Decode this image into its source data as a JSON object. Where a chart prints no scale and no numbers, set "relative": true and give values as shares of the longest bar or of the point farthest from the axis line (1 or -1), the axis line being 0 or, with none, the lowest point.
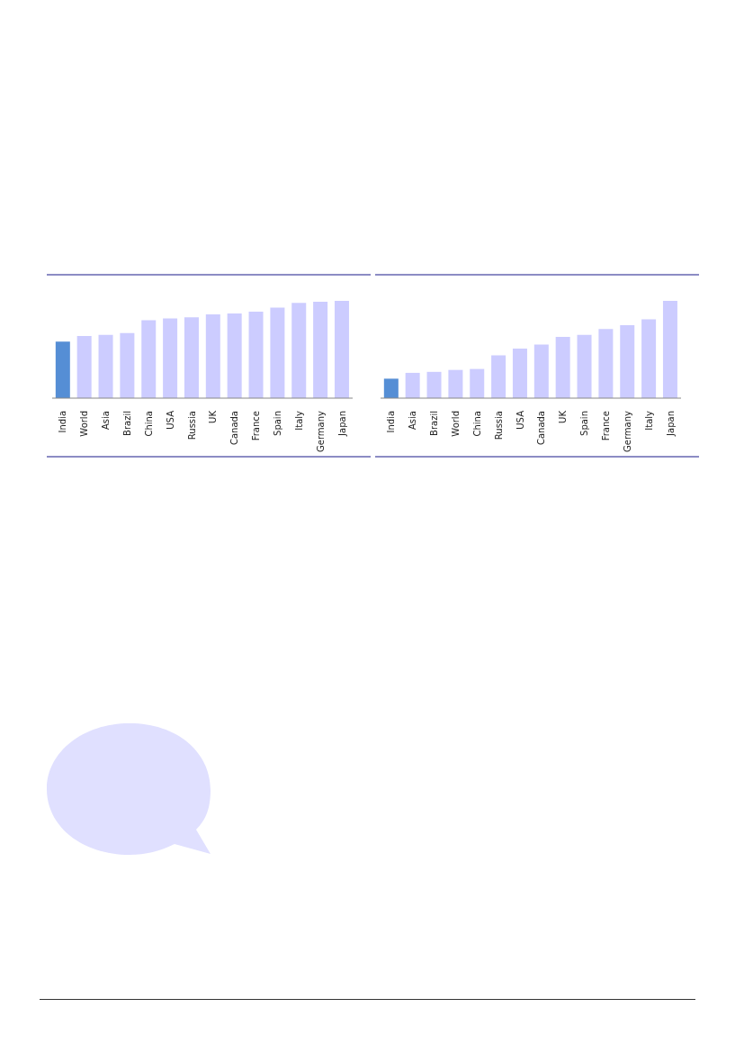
{
  "chart_data": [
    {
      "type": "bar",
      "relative": true,
      "categories": [
        "India",
        "World",
        "Asia",
        "Brazil",
        "China",
        "USA",
        "Russia",
        "UK",
        "Canada",
        "France",
        "Spain",
        "Italy",
        "Germany",
        "Japan"
      ],
      "values": [
        0.58,
        0.64,
        0.65,
        0.67,
        0.8,
        0.82,
        0.83,
        0.86,
        0.87,
        0.89,
        0.93,
        0.98,
        0.99,
        1
      ],
      "colors": [
        "#558ed5",
        "#ccccff",
        "#ccccff",
        "#ccccff",
        "#ccccff",
        "#ccccff",
        "#ccccff",
        "#ccccff",
        "#ccccff",
        "#ccccff",
        "#ccccff",
        "#ccccff",
        "#ccccff",
        "#ccccff"
      ]
    },
    {
      "type": "bar",
      "relative": true,
      "categories": [
        "India",
        "Asia",
        "Brazil",
        "World",
        "China",
        "Russia",
        "USA",
        "Canada",
        "UK",
        "Spain",
        "France",
        "Germany",
        "Italy",
        "Japan"
      ],
      "values": [
        0.2,
        0.26,
        0.27,
        0.29,
        0.3,
        0.44,
        0.51,
        0.55,
        0.63,
        0.65,
        0.71,
        0.75,
        0.81,
        1
      ],
      "colors": [
        "#558ed5",
        "#ccccff",
        "#ccccff",
        "#ccccff",
        "#ccccff",
        "#ccccff",
        "#ccccff",
        "#ccccff",
        "#ccccff",
        "#ccccff",
        "#ccccff",
        "#ccccff",
        "#ccccff",
        "#ccccff"
      ]
    }
  ]
}
